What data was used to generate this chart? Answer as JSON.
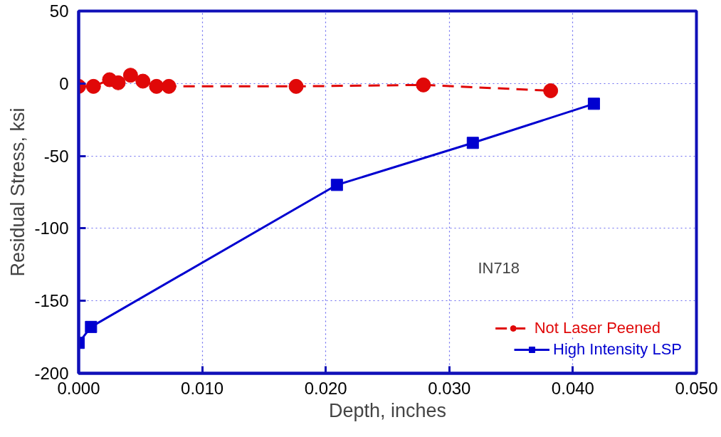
{
  "chart_data": {
    "type": "line",
    "xlabel": "Depth, inches",
    "ylabel": "Residual Stress, ksi",
    "xlim": [
      0,
      0.05
    ],
    "ylim": [
      -200,
      50
    ],
    "xticks": [
      {
        "value": 0,
        "label": "0.000"
      },
      {
        "value": 0.01,
        "label": "0.010"
      },
      {
        "value": 0.02,
        "label": "0.020"
      },
      {
        "value": 0.03,
        "label": "0.030"
      },
      {
        "value": 0.04,
        "label": "0.040"
      },
      {
        "value": 0.05,
        "label": "0.050"
      }
    ],
    "yticks": [
      -200,
      -150,
      -100,
      -50,
      0,
      50
    ],
    "grid": true,
    "legend": "bottom right",
    "annotations": [
      "IN718"
    ],
    "series": [
      {
        "name": "Not Laser Peened",
        "color": "#e00808",
        "marker": "circle",
        "line_style": "dashed",
        "x": [
          0.0,
          0.0012,
          0.0025,
          0.0032,
          0.0042,
          0.0052,
          0.0063,
          0.0073,
          0.0176,
          0.0279,
          0.0382
        ],
        "values": [
          -2,
          -2,
          2.6,
          0.5,
          5.7,
          1.6,
          -2,
          -2,
          -2,
          -1,
          -5
        ]
      },
      {
        "name": "High Intensity LSP",
        "color": "#0000d0",
        "marker": "square",
        "line_style": "solid",
        "x": [
          0.0,
          0.001,
          0.0209,
          0.0319,
          0.0417
        ],
        "values": [
          -179,
          -168,
          -70,
          -41,
          -14
        ]
      }
    ]
  }
}
